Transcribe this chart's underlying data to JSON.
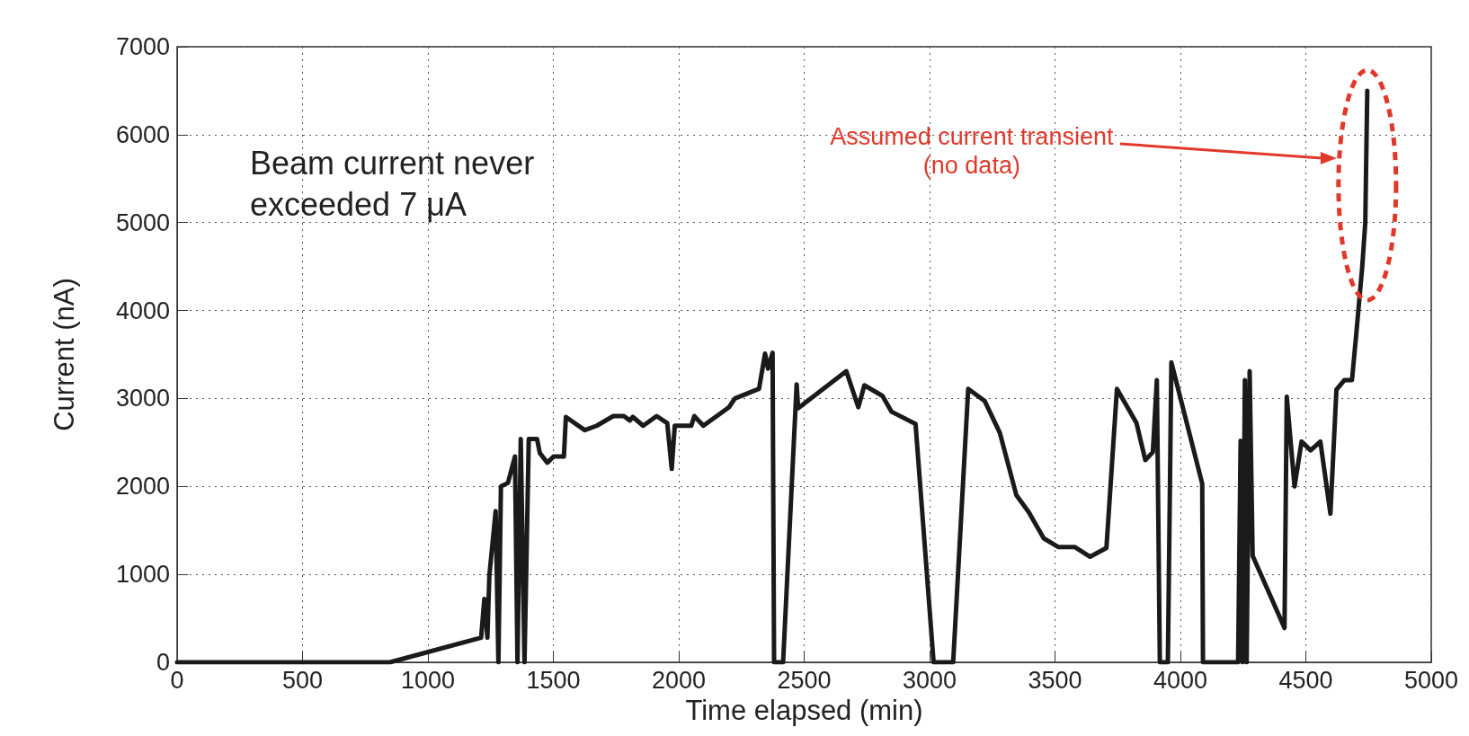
{
  "chart_data": {
    "type": "line",
    "xlabel": "Time elapsed (min)",
    "ylabel": "Current (nA)",
    "x": [
      0,
      848,
      1212,
      1225,
      1237,
      1245,
      1270,
      1281,
      1291,
      1319,
      1347,
      1357,
      1370,
      1385,
      1402,
      1435,
      1446,
      1476,
      1501,
      1542,
      1550,
      1625,
      1673,
      1739,
      1781,
      1805,
      1817,
      1858,
      1912,
      1954,
      1972,
      1984,
      2050,
      2062,
      2098,
      2200,
      2224,
      2320,
      2344,
      2356,
      2374,
      2380,
      2416,
      2470,
      2476,
      2668,
      2716,
      2740,
      2812,
      2848,
      2944,
      3016,
      3094,
      3154,
      3220,
      3280,
      3346,
      3395,
      3455,
      3514,
      3580,
      3640,
      3705,
      3747,
      3825,
      3860,
      3890,
      3906,
      3918,
      3950,
      3964,
      4087,
      4090,
      4230,
      4240,
      4248,
      4257,
      4264,
      4276,
      4288,
      4338,
      4415,
      4424,
      4455,
      4483,
      4519,
      4558,
      4598,
      4622,
      4654,
      4684,
      4700,
      4725,
      4737,
      4745
    ],
    "series": [
      {
        "color": "#1a1a1a",
        "values": [
          0,
          0,
          280,
          720,
          280,
          990,
          1720,
          0,
          2000,
          2040,
          2340,
          0,
          2540,
          0,
          2540,
          2540,
          2380,
          2270,
          2340,
          2340,
          2790,
          2640,
          2690,
          2800,
          2800,
          2750,
          2790,
          2690,
          2800,
          2720,
          2200,
          2690,
          2690,
          2800,
          2690,
          2900,
          3000,
          3110,
          3510,
          3340,
          3520,
          0,
          0,
          3160,
          2890,
          3310,
          2900,
          3150,
          3030,
          2850,
          2710,
          0,
          0,
          3110,
          2970,
          2610,
          1900,
          1710,
          1410,
          1310,
          1310,
          1200,
          1300,
          3110,
          2720,
          2300,
          2390,
          3210,
          0,
          0,
          3410,
          2030,
          0,
          0,
          2520,
          0,
          3210,
          0,
          3310,
          1210,
          890,
          390,
          3020,
          2000,
          2510,
          2410,
          2510,
          1690,
          3100,
          3210,
          3210,
          3700,
          4500,
          5000,
          6500
        ]
      }
    ],
    "xlim": [
      0,
      5000
    ],
    "xticks": [
      0,
      500,
      1000,
      1500,
      2000,
      2500,
      3000,
      3500,
      4000,
      4500,
      5000
    ],
    "ylim": [
      0,
      7000
    ],
    "yticks": [
      0,
      1000,
      2000,
      3000,
      4000,
      5000,
      6000,
      7000
    ],
    "grid": true,
    "line_style": "solid",
    "marker": "none",
    "annotations": [
      "Beam current never\nexceeded 7 μA",
      "Assumed current transient\n(no data)"
    ]
  }
}
